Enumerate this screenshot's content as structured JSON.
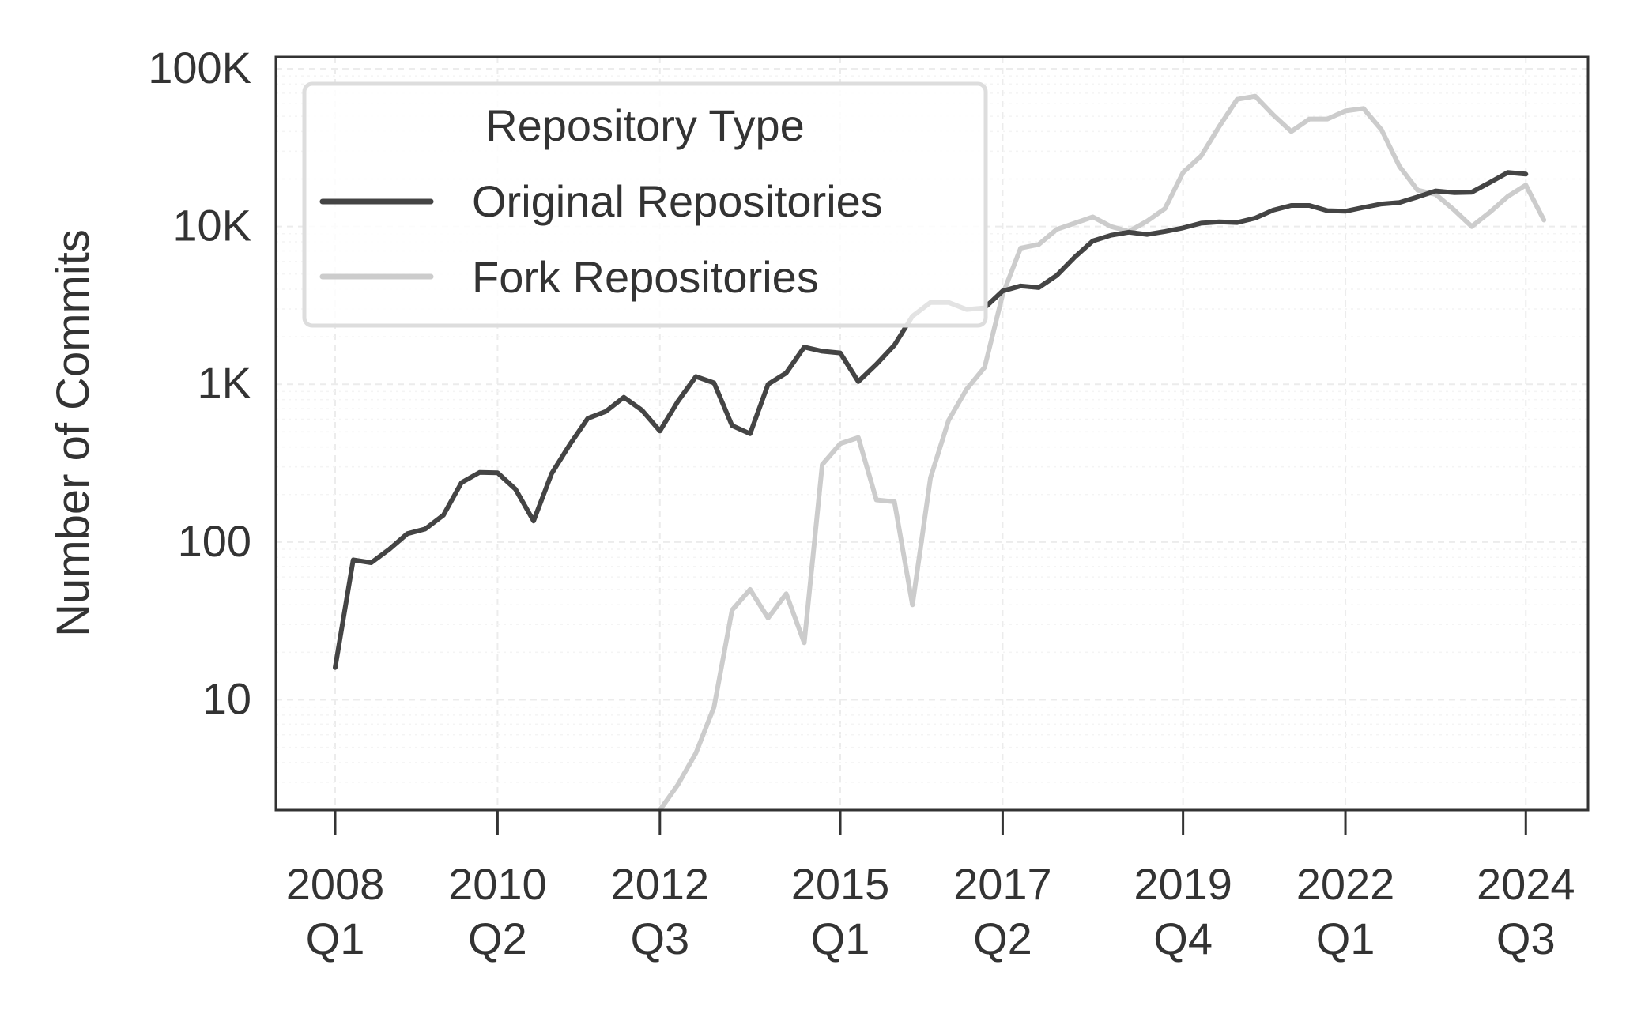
{
  "chart_data": {
    "type": "line",
    "title": "",
    "xlabel": "",
    "ylabel": "Number of Commits",
    "yscale": "log",
    "ylim": [
      2,
      100000
    ],
    "y_ticks": [
      {
        "value": 10,
        "label": "10"
      },
      {
        "value": 100,
        "label": "100"
      },
      {
        "value": 1000,
        "label": "1K"
      },
      {
        "value": 10000,
        "label": "10K"
      },
      {
        "value": 100000,
        "label": "100K"
      }
    ],
    "x_ticks": [
      {
        "quarter": "2008 Q1",
        "year": "2008",
        "q": "Q1"
      },
      {
        "quarter": "2010 Q2",
        "year": "2010",
        "q": "Q2"
      },
      {
        "quarter": "2012 Q3",
        "year": "2012",
        "q": "Q3"
      },
      {
        "quarter": "2015 Q1",
        "year": "2015",
        "q": "Q1"
      },
      {
        "quarter": "2017 Q2",
        "year": "2017",
        "q": "Q2"
      },
      {
        "quarter": "2019 Q4",
        "year": "2019",
        "q": "Q4"
      },
      {
        "quarter": "2022 Q1",
        "year": "2022",
        "q": "Q1"
      },
      {
        "quarter": "2024 Q3",
        "year": "2024",
        "q": "Q3"
      }
    ],
    "grid": true,
    "legend": {
      "title": "Repository Type",
      "placement": "top-left"
    },
    "series": [
      {
        "name": "Original Repositories",
        "color": "#444444",
        "start": "2008 Q1",
        "values": [
          16,
          77,
          74,
          90,
          113,
          121,
          148,
          238,
          276,
          275,
          216,
          136,
          272,
          414,
          608,
          672,
          827,
          686,
          506,
          780,
          1120,
          1020,
          547,
          486,
          1000,
          1180,
          1720,
          1620,
          1580,
          1040,
          1340,
          1770,
          2700,
          3300,
          3300,
          2980,
          3050,
          3900,
          4200,
          4100,
          4900,
          6400,
          8100,
          8800,
          9200,
          8900,
          9300,
          9800,
          10500,
          10700,
          10600,
          11300,
          12700,
          13600,
          13600,
          12600,
          12500,
          13200,
          13900,
          14200,
          15400,
          16800,
          16400,
          16500,
          19000,
          22000,
          21500
        ]
      },
      {
        "name": "Fork Repositories",
        "color": "#cccccc",
        "start": "2012 Q3",
        "values": [
          2,
          2.9,
          4.6,
          9,
          37,
          50,
          33,
          47,
          23,
          310,
          420,
          460,
          185,
          180,
          40,
          255,
          590,
          930,
          1280,
          3700,
          7300,
          7700,
          9600,
          10500,
          11500,
          10000,
          9300,
          10800,
          13000,
          22000,
          28000,
          43000,
          64000,
          67000,
          51000,
          40000,
          48000,
          48000,
          54000,
          56000,
          41000,
          24000,
          17000,
          16000,
          12800,
          10000,
          12300,
          15500,
          18300,
          11000
        ]
      }
    ]
  }
}
